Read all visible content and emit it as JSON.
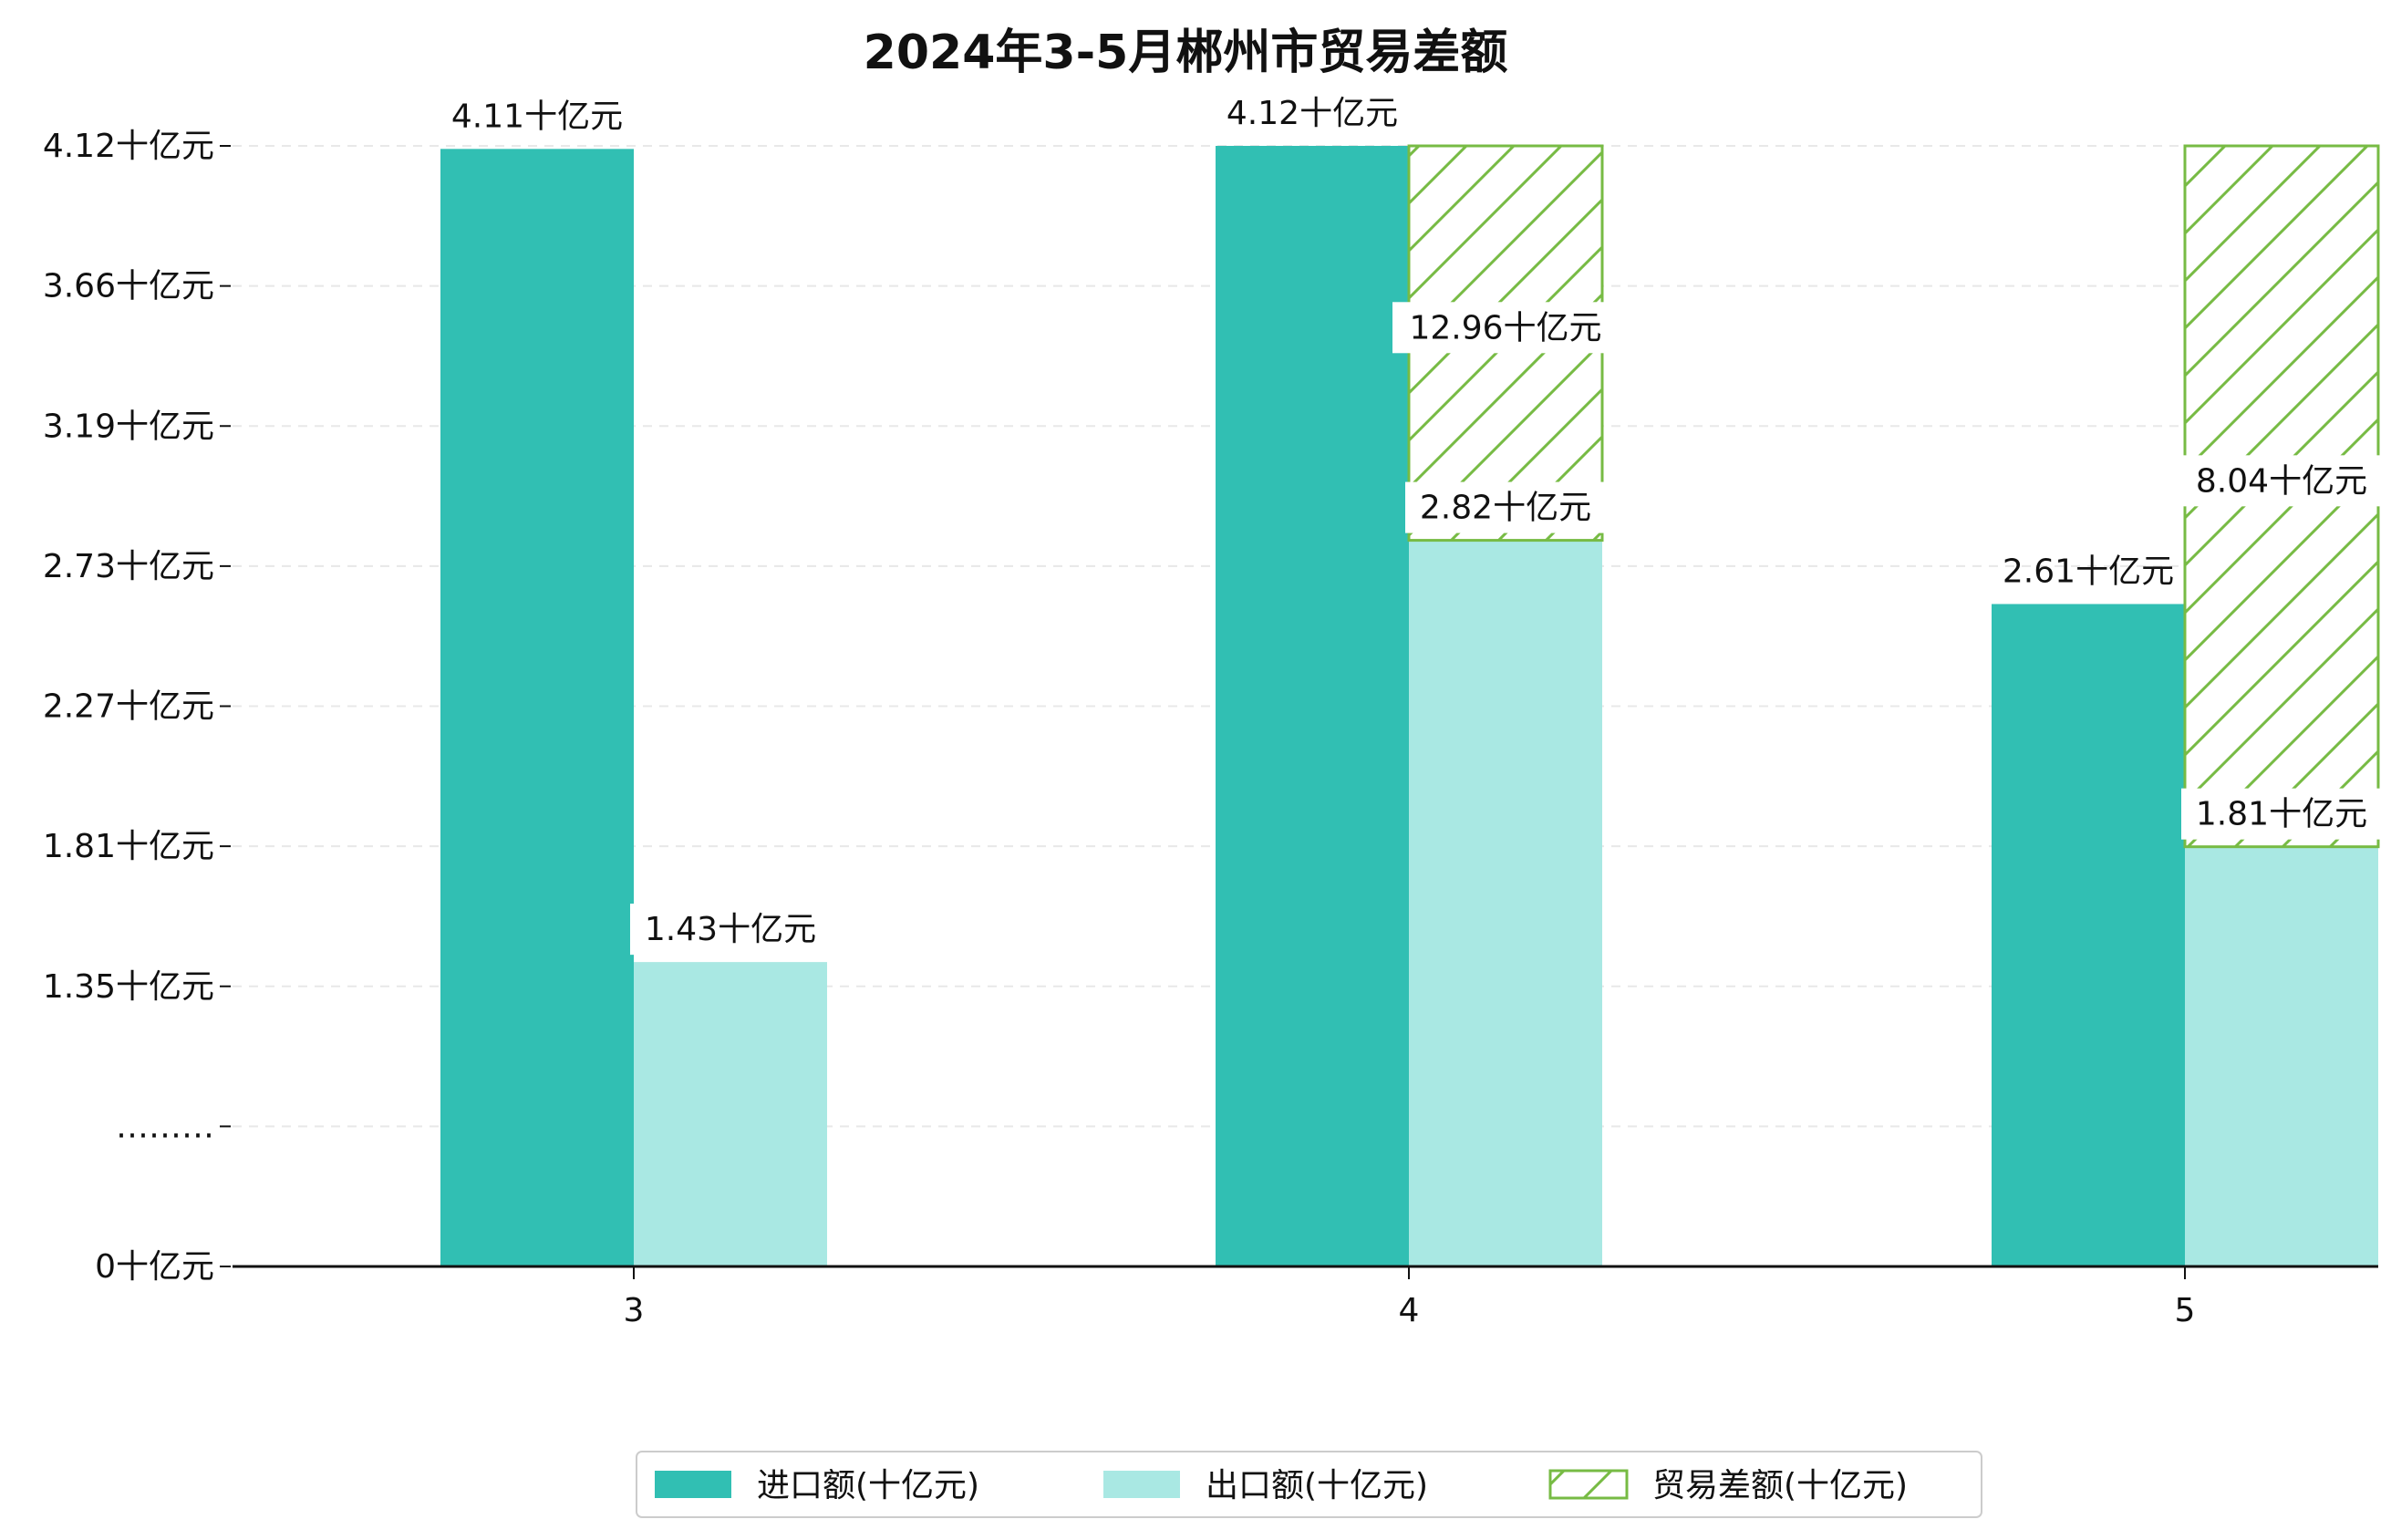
{
  "chart_data": {
    "type": "bar",
    "title": "2024年3-5月郴州市贸易差额",
    "categories": [
      "3",
      "4",
      "5"
    ],
    "y_tick_labels": [
      "0十亿元",
      "………",
      "1.35十亿元",
      "1.81十亿元",
      "2.27十亿元",
      "2.73十亿元",
      "3.19十亿元",
      "3.66十亿元",
      "4.12十亿元"
    ],
    "series": [
      {
        "name": "进口额(十亿元)",
        "values": [
          4.11,
          4.12,
          2.61
        ],
        "labels": [
          "4.11十亿元",
          "4.12十亿元",
          "2.61十亿元"
        ],
        "color": "#31bfb3"
      },
      {
        "name": "出口额(十亿元)",
        "values": [
          1.43,
          2.82,
          1.81
        ],
        "labels": [
          "1.43十亿元",
          "2.82十亿元",
          "1.81十亿元"
        ],
        "color": "#a9e8e3"
      },
      {
        "name": "贸易差额(十亿元)",
        "values": [
          null,
          12.96,
          8.04
        ],
        "labels": [
          "",
          "12.96十亿元",
          "8.04十亿元"
        ],
        "color": "#77bb44",
        "pattern": "hatch"
      }
    ],
    "grid": "horizontal-dashed",
    "legend_position": "bottom"
  }
}
